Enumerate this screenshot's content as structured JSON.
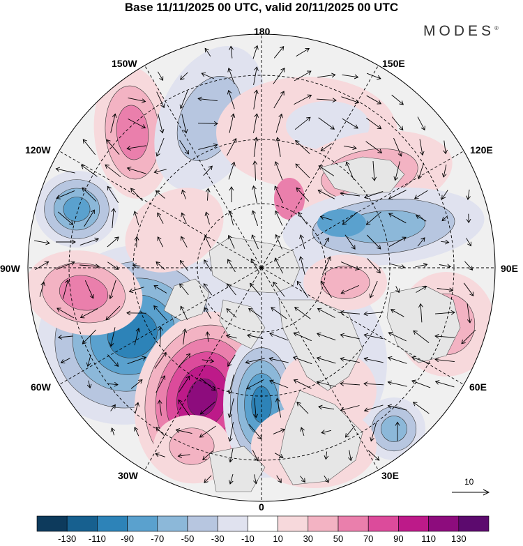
{
  "title": "Base 11/11/2025 00 UTC, valid 20/11/2025 00 UTC",
  "brand": "MODES",
  "brand_mark": "®",
  "longitude_labels": {
    "deg180": "180",
    "e150": "150E",
    "e120": "120E",
    "e90": "90E",
    "e60": "60E",
    "e30": "30E",
    "deg0": "0",
    "w30": "30W",
    "w60": "60W",
    "w90": "90W",
    "w120": "120W",
    "w150": "150W"
  },
  "reference_vector": "10",
  "colorbar": {
    "colors": [
      "#0d3a5c",
      "#17608f",
      "#2d83b8",
      "#5aa1ce",
      "#8cb8d9",
      "#b7c6e0",
      "#e0e2ef",
      "#ffffff",
      "#f7d9dc",
      "#f3b3c3",
      "#ea7fac",
      "#dc4b9b",
      "#bd1a89",
      "#8d0c7d",
      "#5c0a6e"
    ],
    "ticks": [
      "-130",
      "-110",
      "-90",
      "-70",
      "-50",
      "-30",
      "-10",
      "10",
      "30",
      "50",
      "70",
      "90",
      "110",
      "130"
    ]
  },
  "anomaly_colors": {
    "neg_weak": "#e0e2ef",
    "neg_light": "#b7c6e0",
    "neg_mid": "#8cb8d9",
    "neg_strong": "#5aa1ce",
    "neg_deep": "#2d83b8",
    "pos_weak": "#f7d9dc",
    "pos_light": "#f3b3c3",
    "pos_mid": "#ea7fac",
    "pos_strong": "#dc4b9b",
    "pos_deep": "#bd1a89",
    "pos_max": "#8d0c7d",
    "land": "#e6e6e6"
  }
}
